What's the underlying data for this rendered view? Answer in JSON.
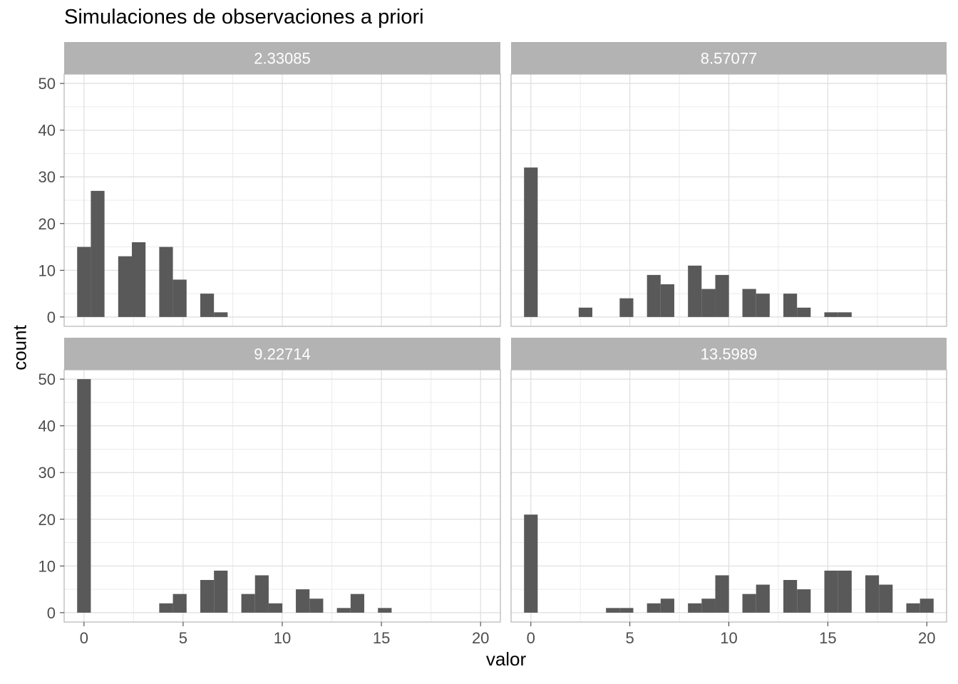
{
  "title": "Simulaciones de observaciones a priori",
  "chart_data": {
    "type": "bar",
    "title": "Simulaciones de observaciones a priori",
    "xlabel": "valor",
    "ylabel": "count",
    "xlim": [
      -1,
      21
    ],
    "ylim": [
      -2,
      52
    ],
    "x_ticks": [
      0,
      5,
      10,
      15,
      20
    ],
    "y_ticks": [
      0,
      10,
      20,
      30,
      40,
      50
    ],
    "grid": true,
    "colors": {
      "bar": "#595959",
      "strip": "#b3b3b3",
      "strip_text": "#ffffff",
      "grid_major": "#dedede",
      "grid_minor": "#ebebeb",
      "panel_border": "#b3b3b3",
      "tick_text": "#4d4d4d"
    },
    "panels": [
      {
        "label": "2.33085",
        "bins": [
          {
            "x": 0,
            "count": 15
          },
          {
            "x": 0.69,
            "count": 27
          },
          {
            "x": 2.07,
            "count": 13
          },
          {
            "x": 2.76,
            "count": 16
          },
          {
            "x": 4.14,
            "count": 15
          },
          {
            "x": 4.83,
            "count": 8
          },
          {
            "x": 6.21,
            "count": 5
          },
          {
            "x": 6.9,
            "count": 1
          }
        ]
      },
      {
        "label": "8.57077",
        "bins": [
          {
            "x": 0,
            "count": 32
          },
          {
            "x": 2.76,
            "count": 2
          },
          {
            "x": 4.83,
            "count": 4
          },
          {
            "x": 6.21,
            "count": 9
          },
          {
            "x": 6.9,
            "count": 7
          },
          {
            "x": 8.28,
            "count": 11
          },
          {
            "x": 8.97,
            "count": 6
          },
          {
            "x": 9.66,
            "count": 9
          },
          {
            "x": 11.03,
            "count": 6
          },
          {
            "x": 11.72,
            "count": 5
          },
          {
            "x": 13.1,
            "count": 5
          },
          {
            "x": 13.79,
            "count": 2
          },
          {
            "x": 15.17,
            "count": 1
          },
          {
            "x": 15.86,
            "count": 1
          }
        ]
      },
      {
        "label": "9.22714",
        "bins": [
          {
            "x": 0,
            "count": 50
          },
          {
            "x": 4.14,
            "count": 2
          },
          {
            "x": 4.83,
            "count": 4
          },
          {
            "x": 6.21,
            "count": 7
          },
          {
            "x": 6.9,
            "count": 9
          },
          {
            "x": 8.28,
            "count": 4
          },
          {
            "x": 8.97,
            "count": 8
          },
          {
            "x": 9.66,
            "count": 2
          },
          {
            "x": 11.03,
            "count": 5
          },
          {
            "x": 11.72,
            "count": 3
          },
          {
            "x": 13.1,
            "count": 1
          },
          {
            "x": 13.79,
            "count": 4
          },
          {
            "x": 15.17,
            "count": 1
          }
        ]
      },
      {
        "label": "13.5989",
        "bins": [
          {
            "x": 0,
            "count": 21
          },
          {
            "x": 4.14,
            "count": 1
          },
          {
            "x": 4.83,
            "count": 1
          },
          {
            "x": 6.21,
            "count": 2
          },
          {
            "x": 6.9,
            "count": 3
          },
          {
            "x": 8.28,
            "count": 2
          },
          {
            "x": 8.97,
            "count": 3
          },
          {
            "x": 9.66,
            "count": 8
          },
          {
            "x": 11.03,
            "count": 4
          },
          {
            "x": 11.72,
            "count": 6
          },
          {
            "x": 13.1,
            "count": 7
          },
          {
            "x": 13.79,
            "count": 5
          },
          {
            "x": 15.17,
            "count": 9
          },
          {
            "x": 15.86,
            "count": 9
          },
          {
            "x": 17.24,
            "count": 8
          },
          {
            "x": 17.93,
            "count": 6
          },
          {
            "x": 19.31,
            "count": 2
          },
          {
            "x": 20,
            "count": 3
          }
        ]
      }
    ]
  }
}
